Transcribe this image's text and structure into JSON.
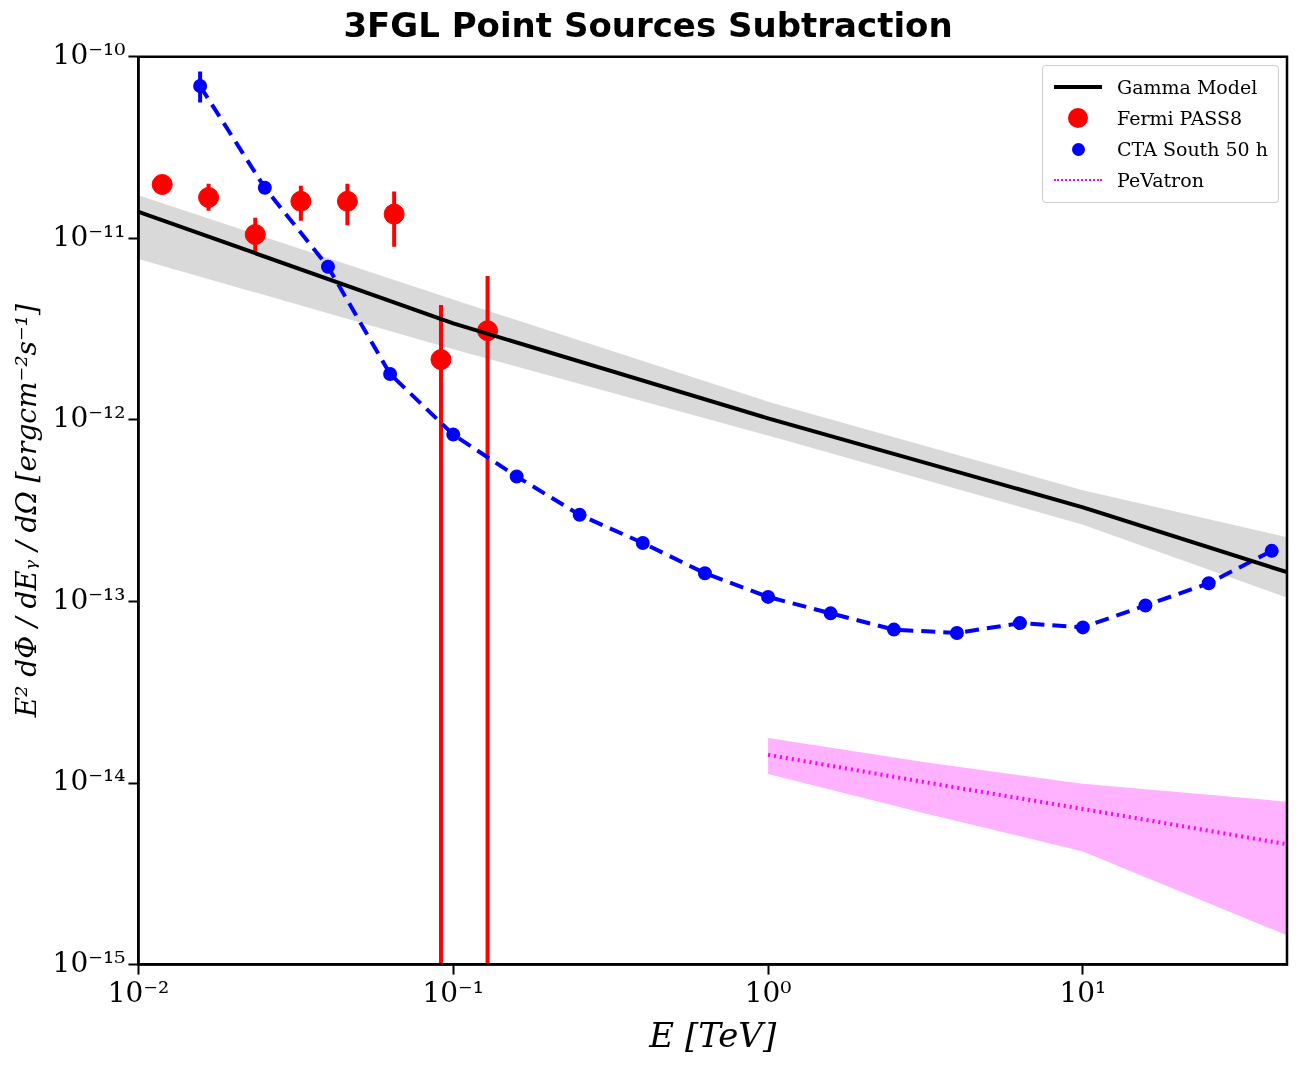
{
  "chart_data": {
    "type": "line",
    "title": "3FGL Point Sources Subtraction",
    "xlabel": "E [TeV]",
    "ylabel": "E² dΦ / dEᵧ / dΩ [ergcm⁻²s⁻¹]",
    "log": "xy",
    "xlim": [
      0.01,
      44.5
    ],
    "ylim": [
      1e-15,
      1e-10
    ],
    "xticks": [
      {
        "value": 0.01,
        "label": "10⁻²"
      },
      {
        "value": 0.1,
        "label": "10⁻¹"
      },
      {
        "value": 1,
        "label": "10⁰"
      },
      {
        "value": 10,
        "label": "10¹"
      }
    ],
    "yticks": [
      {
        "value": 1e-15,
        "label": "10⁻¹⁵"
      },
      {
        "value": 1e-14,
        "label": "10⁻¹⁴"
      },
      {
        "value": 1e-13,
        "label": "10⁻¹³"
      },
      {
        "value": 1e-12,
        "label": "10⁻¹²"
      },
      {
        "value": 1e-11,
        "label": "10⁻¹¹"
      },
      {
        "value": 1e-10,
        "label": "10⁻¹⁰"
      }
    ],
    "grid": false,
    "legend": "top right",
    "series": [
      {
        "name": "Gamma Model",
        "type": "line",
        "color": "#000000",
        "marker": "none",
        "line_style": "solid",
        "x": [
          0.01,
          0.1,
          1,
          10,
          44.5
        ],
        "values": [
          1.4e-11,
          3.4e-12,
          1.02e-12,
          3.3e-13,
          1.45e-13
        ],
        "lower": [
          7.7e-12,
          2.45e-12,
          8.2e-13,
          2.65e-13,
          1.05e-13
        ],
        "upper": [
          1.73e-11,
          4.6e-12,
          1.26e-12,
          4.1e-13,
          2.26e-13
        ]
      },
      {
        "name": "Fermi PASS8",
        "type": "scatter",
        "color": "#ff0000",
        "marker": "circle",
        "x": [
          0.0119,
          0.0167,
          0.0235,
          0.0328,
          0.0461,
          0.0649,
          0.0914,
          0.1285
        ],
        "values": [
          1.98e-11,
          1.68e-11,
          1.05e-11,
          1.6e-11,
          1.6e-11,
          1.36e-11,
          2.15e-12,
          3.1e-12
        ],
        "errors": [
          null,
          [
            1.42e-11,
            2e-11
          ],
          [
            8.2e-12,
            1.3e-11
          ],
          [
            1.25e-11,
            1.95e-11
          ],
          [
            1.18e-11,
            2e-11
          ],
          [
            9e-12,
            1.81e-11
          ],
          [
            1e-15,
            4.3e-12
          ],
          [
            1e-15,
            6.2e-12
          ]
        ]
      },
      {
        "name": "CTA South 50 h",
        "type": "line",
        "color": "#0000ff",
        "marker": "circle",
        "line_style": "dashed",
        "x": [
          0.0157,
          0.0252,
          0.04,
          0.063,
          0.1,
          0.159,
          0.252,
          0.4,
          0.63,
          1.0,
          1.58,
          2.51,
          3.98,
          6.31,
          10,
          15.8,
          25.1,
          39.8
        ],
        "values": [
          6.9e-11,
          1.9e-11,
          6.98e-12,
          1.79e-12,
          8.3e-13,
          4.88e-13,
          3e-13,
          2.1e-13,
          1.43e-13,
          1.06e-13,
          8.6e-14,
          7e-14,
          6.7e-14,
          7.6e-14,
          7.2e-14,
          9.5e-14,
          1.26e-13,
          1.9e-13
        ],
        "errors": [
          [
            5.6e-11,
            8.3e-11
          ],
          null,
          null,
          null,
          null,
          null,
          null,
          null,
          null,
          null,
          null,
          null,
          null,
          null,
          null,
          null,
          null,
          null
        ]
      },
      {
        "name": "PeVatron",
        "type": "line",
        "color": "#ff00ff",
        "marker": "none",
        "line_style": "dotted",
        "x": [
          1,
          3.16,
          10,
          44.5
        ],
        "values": [
          1.43e-14,
          1.01e-14,
          7.2e-15,
          4.6e-15
        ],
        "lower": [
          1.12e-14,
          6.8e-15,
          4.2e-15,
          1.45e-15
        ],
        "upper": [
          1.77e-14,
          1.3e-14,
          9.9e-15,
          7.9e-15
        ]
      }
    ]
  }
}
